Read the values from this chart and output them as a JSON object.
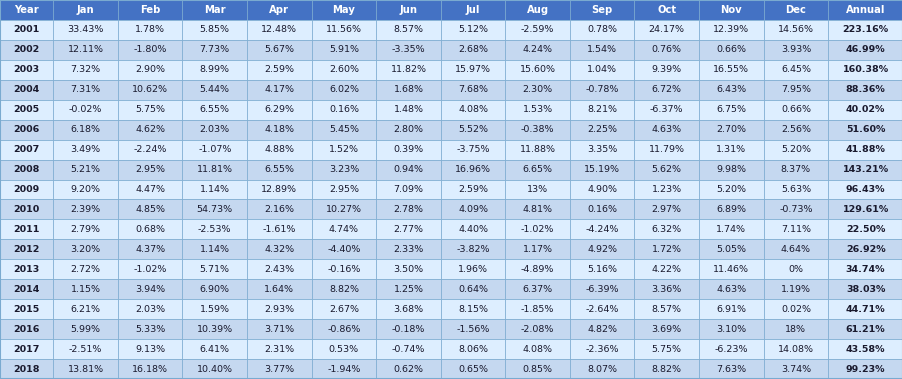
{
  "headers": [
    "Year",
    "Jan",
    "Feb",
    "Mar",
    "Apr",
    "May",
    "Jun",
    "Jul",
    "Aug",
    "Sep",
    "Oct",
    "Nov",
    "Dec",
    "Annual"
  ],
  "rows": [
    [
      "2001",
      "33.43%",
      "1.78%",
      "5.85%",
      "12.48%",
      "11.56%",
      "8.57%",
      "5.12%",
      "-2.59%",
      "0.78%",
      "24.17%",
      "12.39%",
      "14.56%",
      "223.16%"
    ],
    [
      "2002",
      "12.11%",
      "-1.80%",
      "7.73%",
      "5.67%",
      "5.91%",
      "-3.35%",
      "2.68%",
      "4.24%",
      "1.54%",
      "0.76%",
      "0.66%",
      "3.93%",
      "46.99%"
    ],
    [
      "2003",
      "7.32%",
      "2.90%",
      "8.99%",
      "2.59%",
      "2.60%",
      "11.82%",
      "15.97%",
      "15.60%",
      "1.04%",
      "9.39%",
      "16.55%",
      "6.45%",
      "160.38%"
    ],
    [
      "2004",
      "7.31%",
      "10.62%",
      "5.44%",
      "4.17%",
      "6.02%",
      "1.68%",
      "7.68%",
      "2.30%",
      "-0.78%",
      "6.72%",
      "6.43%",
      "7.95%",
      "88.36%"
    ],
    [
      "2005",
      "-0.02%",
      "5.75%",
      "6.55%",
      "6.29%",
      "0.16%",
      "1.48%",
      "4.08%",
      "1.53%",
      "8.21%",
      "-6.37%",
      "6.75%",
      "0.66%",
      "40.02%"
    ],
    [
      "2006",
      "6.18%",
      "4.62%",
      "2.03%",
      "4.18%",
      "5.45%",
      "2.80%",
      "5.52%",
      "-0.38%",
      "2.25%",
      "4.63%",
      "2.70%",
      "2.56%",
      "51.60%"
    ],
    [
      "2007",
      "3.49%",
      "-2.24%",
      "-1.07%",
      "4.88%",
      "1.52%",
      "0.39%",
      "-3.75%",
      "11.88%",
      "3.35%",
      "11.79%",
      "1.31%",
      "5.20%",
      "41.88%"
    ],
    [
      "2008",
      "5.21%",
      "2.95%",
      "11.81%",
      "6.55%",
      "3.23%",
      "0.94%",
      "16.96%",
      "6.65%",
      "15.19%",
      "5.62%",
      "9.98%",
      "8.37%",
      "143.21%"
    ],
    [
      "2009",
      "9.20%",
      "4.47%",
      "1.14%",
      "12.89%",
      "2.95%",
      "7.09%",
      "2.59%",
      "13%",
      "4.90%",
      "1.23%",
      "5.20%",
      "5.63%",
      "96.43%"
    ],
    [
      "2010",
      "2.39%",
      "4.85%",
      "54.73%",
      "2.16%",
      "10.27%",
      "2.78%",
      "4.09%",
      "4.81%",
      "0.16%",
      "2.97%",
      "6.89%",
      "-0.73%",
      "129.61%"
    ],
    [
      "2011",
      "2.79%",
      "0.68%",
      "-2.53%",
      "-1.61%",
      "4.74%",
      "2.77%",
      "4.40%",
      "-1.02%",
      "-4.24%",
      "6.32%",
      "1.74%",
      "7.11%",
      "22.50%"
    ],
    [
      "2012",
      "3.20%",
      "4.37%",
      "1.14%",
      "4.32%",
      "-4.40%",
      "2.33%",
      "-3.82%",
      "1.17%",
      "4.92%",
      "1.72%",
      "5.05%",
      "4.64%",
      "26.92%"
    ],
    [
      "2013",
      "2.72%",
      "-1.02%",
      "5.71%",
      "2.43%",
      "-0.16%",
      "3.50%",
      "1.96%",
      "-4.89%",
      "5.16%",
      "4.22%",
      "11.46%",
      "0%",
      "34.74%"
    ],
    [
      "2014",
      "1.15%",
      "3.94%",
      "6.90%",
      "1.64%",
      "8.82%",
      "1.25%",
      "0.64%",
      "6.37%",
      "-6.39%",
      "3.36%",
      "4.63%",
      "1.19%",
      "38.03%"
    ],
    [
      "2015",
      "6.21%",
      "2.03%",
      "1.59%",
      "2.93%",
      "2.67%",
      "3.68%",
      "8.15%",
      "-1.85%",
      "-2.64%",
      "8.57%",
      "6.91%",
      "0.02%",
      "44.71%"
    ],
    [
      "2016",
      "5.99%",
      "5.33%",
      "10.39%",
      "3.71%",
      "-0.86%",
      "-0.18%",
      "-1.56%",
      "-2.08%",
      "4.82%",
      "3.69%",
      "3.10%",
      "18%",
      "61.21%"
    ],
    [
      "2017",
      "-2.51%",
      "9.13%",
      "6.41%",
      "2.31%",
      "0.53%",
      "-0.74%",
      "8.06%",
      "4.08%",
      "-2.36%",
      "5.75%",
      "-6.23%",
      "14.08%",
      "43.58%"
    ],
    [
      "2018",
      "13.81%",
      "16.18%",
      "10.40%",
      "3.77%",
      "-1.94%",
      "0.62%",
      "0.65%",
      "0.85%",
      "8.07%",
      "8.82%",
      "7.63%",
      "3.74%",
      "99.23%"
    ]
  ],
  "header_bg": "#4472C4",
  "header_fg": "#FFFFFF",
  "row_bg_even": "#DDEEFF",
  "row_bg_odd": "#C5D8F0",
  "annual_bold": true,
  "border_color": "#7AAAD0",
  "text_color": "#1a1a2e",
  "figsize": [
    9.03,
    3.79
  ],
  "dpi": 100
}
